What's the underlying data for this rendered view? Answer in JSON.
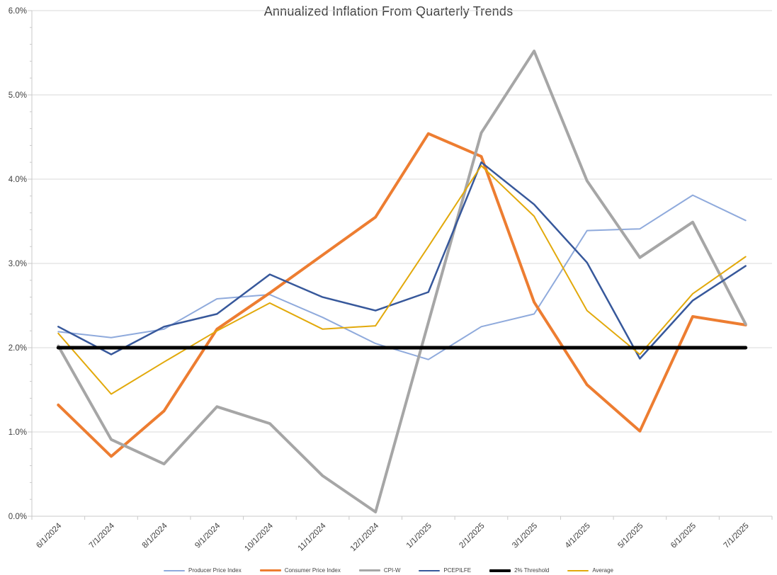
{
  "title": "Annualized Inflation From Quarterly Trends",
  "chart_data": {
    "type": "line",
    "title": "Annualized Inflation From Quarterly Trends",
    "x": [
      "6/1/2024",
      "7/1/2024",
      "8/1/2024",
      "9/1/2024",
      "10/1/2024",
      "11/1/2024",
      "12/1/2024",
      "1/1/2025",
      "2/1/2025",
      "3/1/2025",
      "4/1/2025",
      "5/1/2025",
      "6/1/2025",
      "7/1/2025"
    ],
    "series": [
      {
        "name": "Producer Price Index",
        "color": "#8FAADC",
        "stroke_width": 2,
        "values": [
          2.19,
          2.12,
          2.22,
          2.58,
          2.63,
          2.36,
          2.05,
          1.86,
          2.25,
          2.4,
          3.39,
          3.41,
          3.81,
          3.51
        ]
      },
      {
        "name": "Consumer Price Index",
        "color": "#ED7D31",
        "stroke_width": 4,
        "values": [
          1.32,
          0.71,
          1.25,
          2.22,
          2.65,
          3.1,
          3.55,
          4.54,
          4.27,
          2.54,
          1.56,
          1.01,
          2.37,
          2.27
        ]
      },
      {
        "name": "CPI-W",
        "color": "#A6A6A6",
        "stroke_width": 4,
        "values": [
          2.02,
          0.91,
          0.62,
          1.3,
          1.1,
          0.48,
          0.05,
          2.3,
          4.55,
          5.52,
          3.98,
          3.07,
          3.49,
          2.28
        ]
      },
      {
        "name": "PCEPILFE",
        "color": "#37589B",
        "stroke_width": 2.5,
        "values": [
          2.25,
          1.92,
          2.25,
          2.4,
          2.87,
          2.6,
          2.44,
          2.66,
          4.2,
          3.7,
          3.01,
          1.87,
          2.56,
          2.97
        ]
      },
      {
        "name": "2% Threshold",
        "color": "#000000",
        "stroke_width": 5,
        "values": [
          2,
          2,
          2,
          2,
          2,
          2,
          2,
          2,
          2,
          2,
          2,
          2,
          2,
          2
        ]
      },
      {
        "name": "Average",
        "color": "#E2A90B",
        "stroke_width": 2,
        "values": [
          2.17,
          1.45,
          1.83,
          2.2,
          2.53,
          2.22,
          2.26,
          3.2,
          4.16,
          3.56,
          2.44,
          1.92,
          2.64,
          3.08
        ]
      }
    ],
    "xlabel": "",
    "ylabel": "",
    "ylim": [
      0,
      6
    ],
    "ytick_labels": [
      "0.0%",
      "1.0%",
      "2.0%",
      "3.0%",
      "4.0%",
      "5.0%",
      "6.0%"
    ],
    "ytick_step": 1.0,
    "yminor_step": 0.2,
    "grid": "horizontal-major",
    "x_label_rotation_deg": 45,
    "legend_position": "bottom",
    "draw_order": [
      0,
      1,
      2,
      3,
      5,
      4
    ],
    "colors": {
      "gridline": "#D9D9D9",
      "axis": "#C9C9C9",
      "tick": "#C9C9C9",
      "axis_text": "#404040",
      "title_text": "#3F3F3F"
    }
  }
}
